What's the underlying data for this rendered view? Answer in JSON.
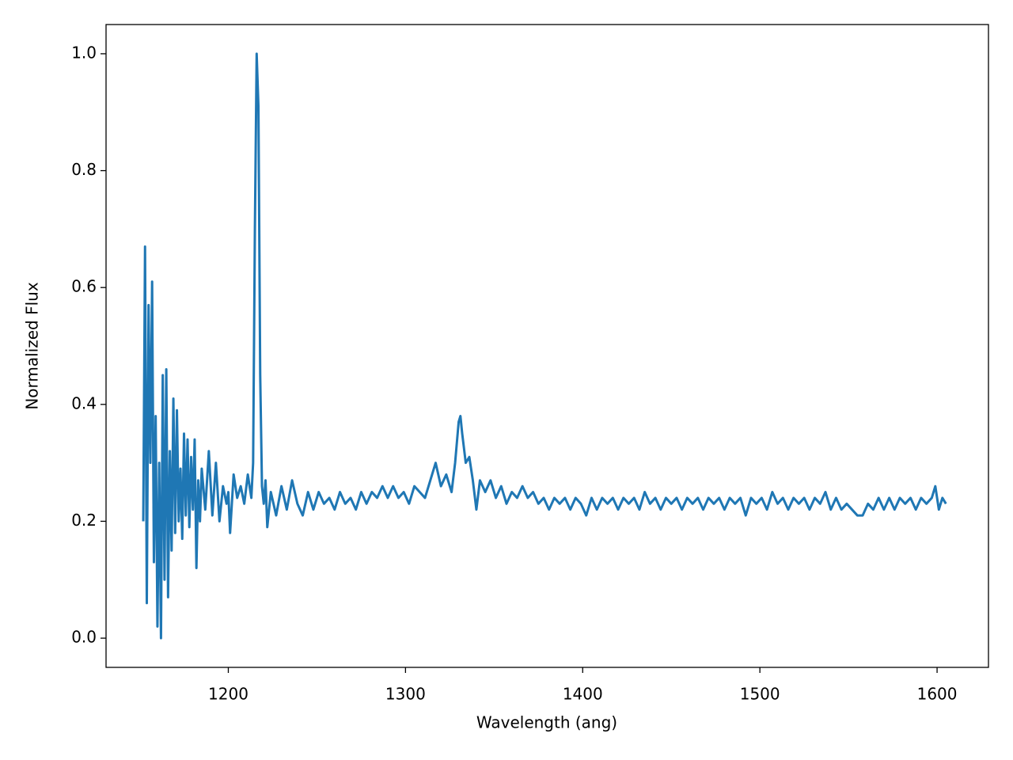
{
  "chart_data": {
    "type": "line",
    "xlabel": "Wavelength (ang)",
    "ylabel": "Normalized Flux",
    "color": "#1f77b4",
    "xlim": [
      1131,
      1629
    ],
    "ylim": [
      -0.05,
      1.05
    ],
    "xticks": [
      1200,
      1300,
      1400,
      1500,
      1600
    ],
    "yticks": [
      {
        "value": 0,
        "label": "0.0"
      },
      0.2,
      0.4,
      0.6,
      0.8,
      {
        "value": 1,
        "label": "1.0"
      }
    ],
    "x": [
      1152,
      1153,
      1154,
      1155,
      1156,
      1157,
      1158,
      1159,
      1160,
      1161,
      1162,
      1163,
      1164,
      1165,
      1166,
      1167,
      1168,
      1169,
      1170,
      1171,
      1172,
      1173,
      1174,
      1175,
      1176,
      1177,
      1178,
      1179,
      1180,
      1181,
      1182,
      1183,
      1184,
      1185,
      1187,
      1189,
      1191,
      1193,
      1195,
      1197,
      1199,
      1200,
      1201,
      1203,
      1205,
      1207,
      1209,
      1211,
      1213,
      1214,
      1215,
      1216,
      1217,
      1218,
      1219,
      1220,
      1221,
      1222,
      1224,
      1227,
      1230,
      1233,
      1236,
      1239,
      1242,
      1245,
      1248,
      1251,
      1254,
      1257,
      1260,
      1263,
      1266,
      1269,
      1272,
      1275,
      1278,
      1281,
      1284,
      1287,
      1290,
      1293,
      1296,
      1299,
      1302,
      1305,
      1308,
      1311,
      1314,
      1317,
      1320,
      1323,
      1326,
      1328,
      1330,
      1331,
      1332,
      1334,
      1336,
      1338,
      1340,
      1342,
      1345,
      1348,
      1351,
      1354,
      1357,
      1360,
      1363,
      1366,
      1369,
      1372,
      1375,
      1378,
      1381,
      1384,
      1387,
      1390,
      1393,
      1396,
      1399,
      1402,
      1405,
      1408,
      1411,
      1414,
      1417,
      1420,
      1423,
      1426,
      1429,
      1432,
      1435,
      1438,
      1441,
      1444,
      1447,
      1450,
      1453,
      1456,
      1459,
      1462,
      1465,
      1468,
      1471,
      1474,
      1477,
      1480,
      1483,
      1486,
      1489,
      1492,
      1495,
      1498,
      1501,
      1504,
      1507,
      1510,
      1513,
      1516,
      1519,
      1522,
      1525,
      1528,
      1531,
      1534,
      1537,
      1540,
      1543,
      1546,
      1549,
      1552,
      1555,
      1558,
      1561,
      1564,
      1567,
      1570,
      1573,
      1576,
      1579,
      1582,
      1585,
      1588,
      1591,
      1594,
      1597,
      1599,
      1601,
      1603,
      1605
    ],
    "values": [
      0.2,
      0.67,
      0.06,
      0.57,
      0.3,
      0.61,
      0.13,
      0.38,
      0.02,
      0.3,
      0.0,
      0.45,
      0.1,
      0.46,
      0.07,
      0.32,
      0.15,
      0.41,
      0.18,
      0.39,
      0.2,
      0.29,
      0.17,
      0.35,
      0.21,
      0.34,
      0.19,
      0.31,
      0.22,
      0.34,
      0.12,
      0.27,
      0.2,
      0.29,
      0.22,
      0.32,
      0.21,
      0.3,
      0.2,
      0.26,
      0.23,
      0.25,
      0.18,
      0.28,
      0.24,
      0.26,
      0.23,
      0.28,
      0.24,
      0.3,
      0.7,
      1.0,
      0.91,
      0.45,
      0.26,
      0.23,
      0.27,
      0.19,
      0.25,
      0.21,
      0.26,
      0.22,
      0.27,
      0.23,
      0.21,
      0.25,
      0.22,
      0.25,
      0.23,
      0.24,
      0.22,
      0.25,
      0.23,
      0.24,
      0.22,
      0.25,
      0.23,
      0.25,
      0.24,
      0.26,
      0.24,
      0.26,
      0.24,
      0.25,
      0.23,
      0.26,
      0.25,
      0.24,
      0.27,
      0.3,
      0.26,
      0.28,
      0.25,
      0.3,
      0.37,
      0.38,
      0.35,
      0.3,
      0.31,
      0.27,
      0.22,
      0.27,
      0.25,
      0.27,
      0.24,
      0.26,
      0.23,
      0.25,
      0.24,
      0.26,
      0.24,
      0.25,
      0.23,
      0.24,
      0.22,
      0.24,
      0.23,
      0.24,
      0.22,
      0.24,
      0.23,
      0.21,
      0.24,
      0.22,
      0.24,
      0.23,
      0.24,
      0.22,
      0.24,
      0.23,
      0.24,
      0.22,
      0.25,
      0.23,
      0.24,
      0.22,
      0.24,
      0.23,
      0.24,
      0.22,
      0.24,
      0.23,
      0.24,
      0.22,
      0.24,
      0.23,
      0.24,
      0.22,
      0.24,
      0.23,
      0.24,
      0.21,
      0.24,
      0.23,
      0.24,
      0.22,
      0.25,
      0.23,
      0.24,
      0.22,
      0.24,
      0.23,
      0.24,
      0.22,
      0.24,
      0.23,
      0.25,
      0.22,
      0.24,
      0.22,
      0.23,
      0.22,
      0.21,
      0.21,
      0.23,
      0.22,
      0.24,
      0.22,
      0.24,
      0.22,
      0.24,
      0.23,
      0.24,
      0.22,
      0.24,
      0.23,
      0.24,
      0.26,
      0.22,
      0.24,
      0.23
    ]
  }
}
